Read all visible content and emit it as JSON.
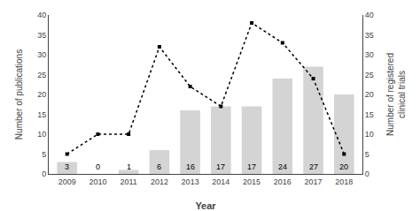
{
  "chart_data": {
    "type": "bar",
    "xlabel": "Year",
    "ylabel": "Number of publications",
    "y2label": "Number of registered\nclinical trials",
    "categories": [
      "2009",
      "2010",
      "2011",
      "2012",
      "2013",
      "2014",
      "2015",
      "2016",
      "2017",
      "2018"
    ],
    "series": [
      {
        "type": "bar",
        "color": "#d4d4d4",
        "data_labels": true,
        "values": [
          3,
          0,
          1,
          6,
          16,
          17,
          17,
          24,
          27,
          20
        ]
      },
      {
        "type": "line",
        "axis": "y2",
        "color": "#000000",
        "marker": "square",
        "line_style": "dotted",
        "values": [
          5,
          10,
          10,
          32,
          22,
          17,
          38,
          33,
          24,
          5
        ]
      }
    ],
    "ylim": [
      0,
      40
    ],
    "yticks": [
      0,
      5,
      10,
      15,
      20,
      25,
      30,
      35,
      40
    ],
    "y2lim": [
      0,
      40
    ],
    "y2ticks": [
      0,
      5,
      10,
      15,
      20,
      25,
      30,
      35,
      40
    ],
    "grid": false
  }
}
